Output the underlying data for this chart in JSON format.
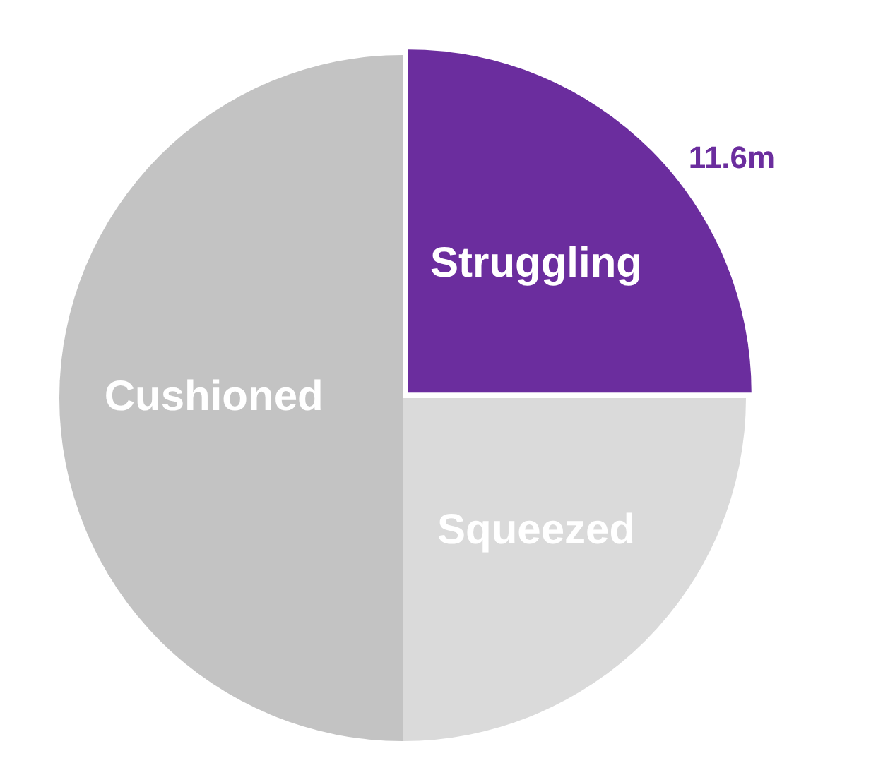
{
  "chart_data": {
    "type": "pie",
    "categories": [
      "Struggling",
      "Squeezed",
      "Cushioned"
    ],
    "values": [
      25,
      25,
      50
    ],
    "annotations": [
      {
        "text": "11.6m",
        "x": "Struggling"
      }
    ],
    "colors": [
      "#6b2d9e",
      "#dadada",
      "#c3c3c3"
    ],
    "legend": false
  }
}
